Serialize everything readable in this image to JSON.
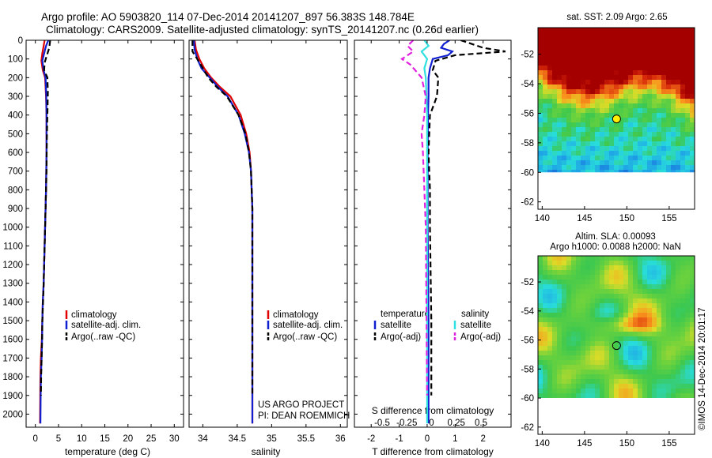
{
  "header": {
    "title_line1": "Argo profile: AO 5903820_114 07-Dec-2014 20141207_897 56.383S 148.784E",
    "title_line2": "Climatology: CARS2009. Satellite-adjusted climatology: synTS_20141207.nc (0.26d earlier)"
  },
  "colors": {
    "climatology": "#e00000",
    "satellite": "#1020d0",
    "argo": "#000000",
    "argo_sal_diff": "#e020e0",
    "sat_sal_diff": "#30e0e0"
  },
  "chart_data": [
    {
      "type": "line",
      "xlabel": "temperature (deg C)",
      "ylabel": "",
      "xlim": [
        -2,
        32
      ],
      "ylim": [
        2070,
        0
      ],
      "xticks": [
        0,
        5,
        10,
        15,
        20,
        25,
        30
      ],
      "yticks": [
        0,
        100,
        200,
        300,
        400,
        500,
        600,
        700,
        800,
        900,
        1000,
        1100,
        1200,
        1300,
        1400,
        1500,
        1600,
        1700,
        1800,
        1900,
        2000
      ],
      "legend": {
        "position": "lower-center",
        "entries": [
          "climatology",
          "satellite-adj. clim.",
          "Argo(..raw -QC)"
        ]
      },
      "series": [
        {
          "name": "climatology",
          "color": "#e00000",
          "dash": false,
          "x": [
            2.0,
            1.8,
            1.5,
            1.3,
            1.6,
            2.1,
            2.3,
            2.4,
            2.4,
            2.4,
            2.35,
            2.3,
            2.2,
            2.1,
            1.9,
            1.8,
            1.6,
            1.5,
            1.4,
            1.2,
            1.1,
            1.05,
            1.0
          ],
          "y": [
            0,
            30,
            70,
            110,
            160,
            200,
            300,
            400,
            500,
            600,
            700,
            800,
            900,
            1000,
            1200,
            1300,
            1400,
            1500,
            1600,
            1700,
            1800,
            1900,
            2050
          ]
        },
        {
          "name": "satellite-adj. clim.",
          "color": "#1020d0",
          "dash": false,
          "x": [
            2.8,
            2.3,
            1.9,
            1.5,
            1.8,
            2.2,
            2.35,
            2.4,
            2.4,
            2.4,
            2.35,
            2.3,
            2.2,
            2.1,
            1.9,
            1.8,
            1.6,
            1.5,
            1.45,
            1.35,
            1.2,
            1.15,
            1.1
          ],
          "y": [
            0,
            30,
            70,
            110,
            160,
            200,
            300,
            400,
            500,
            600,
            700,
            800,
            900,
            1000,
            1200,
            1300,
            1400,
            1500,
            1600,
            1700,
            1800,
            1900,
            2050
          ]
        },
        {
          "name": "Argo(..raw -QC)",
          "color": "#000000",
          "dash": true,
          "x": [
            3.2,
            3.0,
            2.5,
            2.0,
            1.9,
            2.6,
            2.7,
            2.6,
            2.5,
            2.45,
            2.4,
            2.3,
            2.2,
            2.1,
            1.9,
            1.8,
            1.65,
            1.5,
            1.45,
            1.35,
            1.25,
            1.2
          ],
          "y": [
            0,
            40,
            80,
            120,
            160,
            200,
            280,
            400,
            500,
            600,
            700,
            800,
            900,
            1000,
            1200,
            1300,
            1400,
            1500,
            1600,
            1700,
            1800,
            1900
          ]
        }
      ]
    },
    {
      "type": "line",
      "xlabel": "salinity",
      "ylabel": "",
      "xlim": [
        33.8,
        36.1
      ],
      "ylim": [
        2070,
        0
      ],
      "xticks": [
        34,
        34.5,
        35,
        35.5,
        36
      ],
      "xticklabels": [
        "34",
        "34.5",
        "35",
        "35.5",
        "36"
      ],
      "legend": {
        "position": "lower-center",
        "entries": [
          "climatology",
          "satellite-adj. clim.",
          "Argo(..raw -QC)"
        ]
      },
      "annotation": [
        "US ARGO PROJECT",
        "PI: DEAN ROEMMICH"
      ],
      "series": [
        {
          "name": "climatology",
          "color": "#e00000",
          "dash": false,
          "x": [
            33.88,
            33.9,
            33.95,
            34.02,
            34.12,
            34.25,
            34.4,
            34.55,
            34.63,
            34.68,
            34.7,
            34.71,
            34.72,
            34.72,
            34.72
          ],
          "y": [
            0,
            50,
            100,
            150,
            200,
            250,
            300,
            400,
            500,
            600,
            700,
            800,
            900,
            1000,
            2050
          ]
        },
        {
          "name": "satellite-adj. clim.",
          "color": "#1020d0",
          "dash": false,
          "x": [
            33.87,
            33.88,
            33.92,
            33.98,
            34.1,
            34.22,
            34.36,
            34.52,
            34.61,
            34.67,
            34.7,
            34.71,
            34.72,
            34.72,
            34.72
          ],
          "y": [
            0,
            50,
            100,
            150,
            200,
            250,
            300,
            400,
            500,
            600,
            700,
            800,
            900,
            1000,
            2050
          ]
        },
        {
          "name": "Argo(..raw -QC)",
          "color": "#000000",
          "dash": true,
          "x": [
            33.85,
            33.85,
            33.92,
            34.0,
            34.08,
            34.2,
            34.35,
            34.52,
            34.62,
            34.67,
            34.7,
            34.71,
            34.72,
            34.72
          ],
          "y": [
            0,
            60,
            100,
            150,
            200,
            250,
            300,
            400,
            500,
            600,
            700,
            800,
            900,
            1900
          ]
        }
      ]
    },
    {
      "type": "line",
      "xlabel": "T difference from climatology",
      "xlabel2": "S difference from climatology",
      "xlim": [
        -2.6,
        3.0
      ],
      "ylim": [
        2070,
        0
      ],
      "xticks": [
        -2,
        -1,
        0,
        1,
        2
      ],
      "xticks_s": [
        -0.5,
        -0.25,
        0,
        0.25,
        0.5
      ],
      "xticklabels_s": [
        "-0.5",
        "-0.25",
        "0",
        "0.25",
        "0.5"
      ],
      "legend": {
        "position": "lower-center",
        "temperature_title": "temperature",
        "salinity_title": "salinity",
        "entries_t": [
          "satellite",
          "Argo(-adj)"
        ],
        "entries_s": [
          "satellite",
          "Argo(-adj)"
        ]
      },
      "series": [
        {
          "name": "satellite",
          "group": "temperature",
          "color": "#1020d0",
          "dash": false,
          "x": [
            0.8,
            0.6,
            0.5,
            0.9,
            0.75,
            0.2,
            0.1,
            0.05,
            0.05,
            0.03,
            0.02,
            0.02,
            0.02,
            0.05,
            0.05
          ],
          "y": [
            0,
            20,
            40,
            60,
            80,
            100,
            150,
            200,
            300,
            400,
            600,
            800,
            1000,
            1500,
            2050
          ]
        },
        {
          "name": "Argo(-adj)",
          "group": "temperature",
          "color": "#000000",
          "dash": true,
          "x": [
            1.2,
            1.6,
            2.0,
            2.8,
            1.0,
            0.3,
            0.2,
            0.4,
            0.35,
            0.1,
            0.05,
            0.1,
            0.1,
            0.15,
            0.15
          ],
          "y": [
            0,
            20,
            40,
            60,
            80,
            110,
            160,
            200,
            300,
            400,
            600,
            800,
            1000,
            1500,
            1900
          ]
        },
        {
          "name": "satellite",
          "group": "salinity",
          "color": "#30e0e0",
          "dash": false,
          "x": [
            -0.1,
            0.05,
            -0.2,
            0.0,
            -0.1,
            -0.05,
            0.0,
            0.0,
            0.0,
            0.0,
            0.0
          ],
          "y": [
            0,
            30,
            60,
            100,
            150,
            200,
            400,
            800,
            1200,
            1600,
            2050
          ]
        },
        {
          "name": "Argo(-adj)",
          "group": "salinity",
          "color": "#e020e0",
          "dash": true,
          "x": [
            -0.5,
            -0.7,
            -0.5,
            -0.9,
            -0.6,
            -0.2,
            -0.05,
            -0.1,
            -0.2,
            -0.15,
            -0.1,
            -0.05,
            0.0
          ],
          "y": [
            0,
            30,
            60,
            100,
            130,
            200,
            300,
            400,
            500,
            600,
            800,
            1000,
            1900
          ]
        }
      ]
    },
    {
      "type": "heatmap",
      "title": "sat. SST: 2.09 Argo: 2.65",
      "xlim": [
        139.5,
        158
      ],
      "ylim": [
        -62.5,
        -50.2
      ],
      "xticks": [
        140,
        145,
        150,
        155
      ],
      "yticks": [
        -52,
        -54,
        -56,
        -58,
        -60,
        -62
      ],
      "data_extent": {
        "lat_min": -60,
        "lat_max": -50.2
      },
      "marker": {
        "lon": 148.784,
        "lat": -56.383,
        "fill": "#ffee00"
      }
    },
    {
      "type": "heatmap",
      "title": "Altim. SLA: 0.00093",
      "subtitle": "Argo h1000: 0.0088 h2000: NaN",
      "xlim": [
        139.5,
        158
      ],
      "ylim": [
        -62.5,
        -50.2
      ],
      "xticks": [
        140,
        145,
        150,
        155
      ],
      "yticks": [
        -52,
        -54,
        -56,
        -58,
        -60,
        -62
      ],
      "data_extent": {
        "lat_min": -60,
        "lat_max": -50.2
      },
      "marker": {
        "lon": 148.784,
        "lat": -56.383,
        "fill": "none"
      }
    }
  ],
  "footer": {
    "credit": "©IMOS 14-Dec-2014 20:01:17"
  }
}
